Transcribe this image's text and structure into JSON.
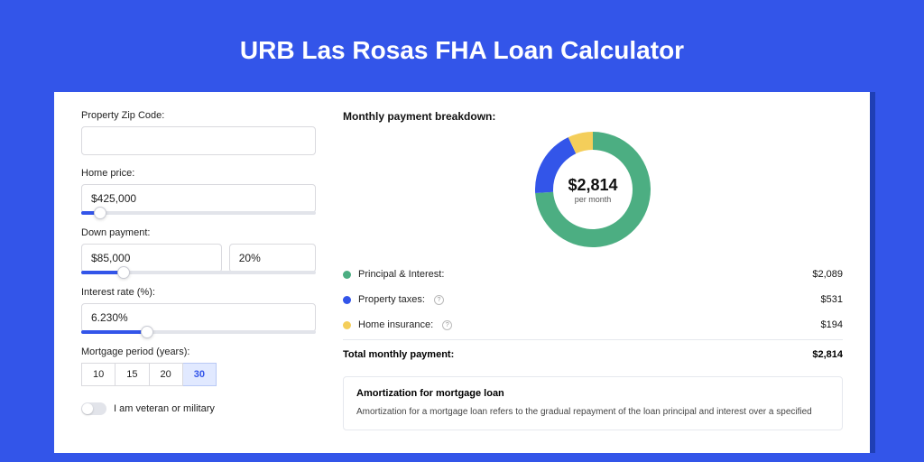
{
  "page": {
    "title": "URB Las Rosas FHA Loan Calculator",
    "background_color": "#3355e9",
    "card_shadow_color": "#1f3fb5"
  },
  "form": {
    "zip": {
      "label": "Property Zip Code:",
      "value": ""
    },
    "home_price": {
      "label": "Home price:",
      "value": "$425,000",
      "slider_pct": 8
    },
    "down_payment": {
      "label": "Down payment:",
      "amount": "$85,000",
      "percent": "20%",
      "slider_pct": 18
    },
    "interest": {
      "label": "Interest rate (%):",
      "value": "6.230%",
      "slider_pct": 28
    },
    "period": {
      "label": "Mortgage period (years):",
      "options": [
        "10",
        "15",
        "20",
        "30"
      ],
      "selected": "30"
    },
    "veteran": {
      "label": "I am veteran or military",
      "on": false
    }
  },
  "breakdown": {
    "title": "Monthly payment breakdown:",
    "center_amount": "$2,814",
    "center_sub": "per month",
    "donut": {
      "slices": [
        {
          "name": "principal-interest",
          "label": "Principal & Interest:",
          "value": "$2,089",
          "color": "#4cae82",
          "pct": 74,
          "info": false
        },
        {
          "name": "property-taxes",
          "label": "Property taxes:",
          "value": "$531",
          "color": "#3355e9",
          "pct": 19,
          "info": true
        },
        {
          "name": "home-insurance",
          "label": "Home insurance:",
          "value": "$194",
          "color": "#f4ce5a",
          "pct": 7,
          "info": true
        }
      ],
      "thickness": 20,
      "radius": 64,
      "bg": "#ffffff"
    },
    "total": {
      "label": "Total monthly payment:",
      "value": "$2,814"
    }
  },
  "amortization": {
    "title": "Amortization for mortgage loan",
    "text": "Amortization for a mortgage loan refers to the gradual repayment of the loan principal and interest over a specified"
  }
}
